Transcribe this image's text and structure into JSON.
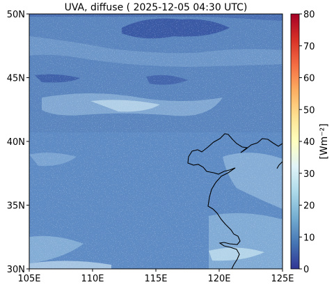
{
  "map": {
    "title": "UVA, diffuse ( 2025-12-05 04:30 UTC)",
    "x_ticks": [
      "105E",
      "110E",
      "115E",
      "120E",
      "125E"
    ],
    "y_ticks": [
      "30N",
      "35N",
      "40N",
      "45N",
      "50N"
    ],
    "lon_range": [
      105,
      125
    ],
    "lat_range": [
      30,
      50
    ],
    "colors": {
      "base_field": "#5b86bf",
      "light_field": "#9ec4e0",
      "very_light_field": "#c9e2ef",
      "dark_field": "#3a58a3",
      "coastline": "#000000"
    }
  },
  "colorbar": {
    "label": "[Wm⁻²]",
    "ticks": [
      "0",
      "10",
      "20",
      "30",
      "40",
      "50",
      "60",
      "70",
      "80"
    ],
    "range": [
      0,
      80
    ],
    "colormap": "RdYlBu_r"
  }
}
